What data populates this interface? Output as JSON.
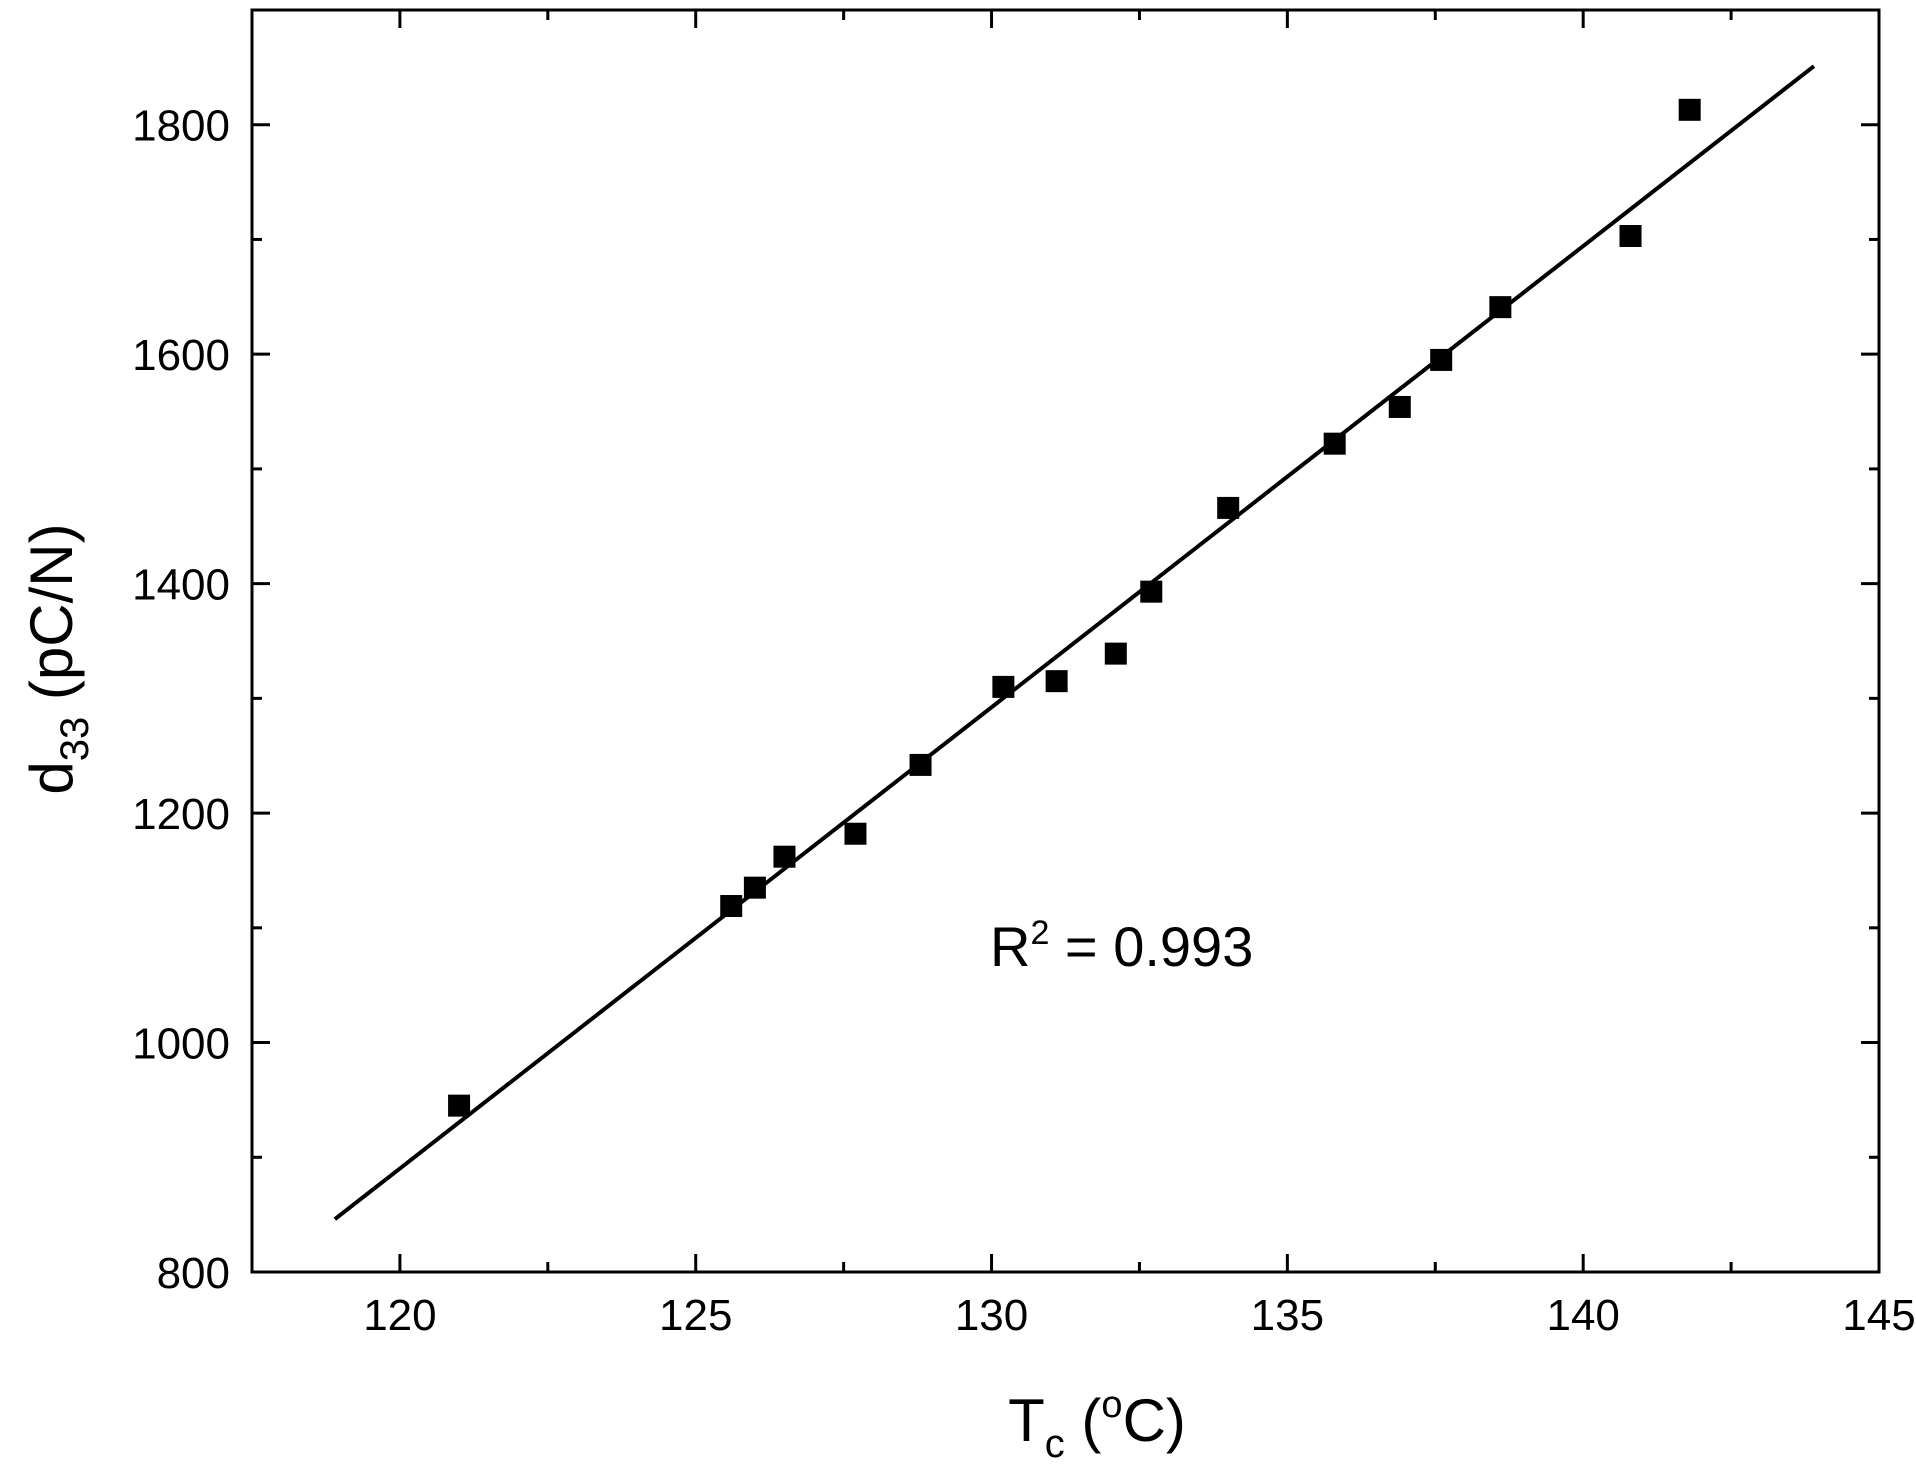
{
  "chart_data": {
    "type": "scatter",
    "xlim": [
      117.5,
      145
    ],
    "ylim": [
      800,
      1900
    ],
    "x_ticks": [
      {
        "value": 120,
        "label": "120"
      },
      {
        "value": 125,
        "label": "125"
      },
      {
        "value": 130,
        "label": "130"
      },
      {
        "value": 135,
        "label": "135"
      },
      {
        "value": 140,
        "label": "140"
      },
      {
        "value": 145,
        "label": "145"
      }
    ],
    "x_minor_ticks": [
      122.5,
      127.5,
      132.5,
      137.5,
      142.5
    ],
    "y_ticks": [
      {
        "value": 800,
        "label": "800"
      },
      {
        "value": 1000,
        "label": "1000"
      },
      {
        "value": 1200,
        "label": "1200"
      },
      {
        "value": 1400,
        "label": "1400"
      },
      {
        "value": 1600,
        "label": "1600"
      },
      {
        "value": 1800,
        "label": "1800"
      }
    ],
    "y_minor_ticks": [
      900,
      1100,
      1300,
      1500,
      1700
    ],
    "xlabel": {
      "main": "T",
      "sub": "c",
      "open": " (",
      "sup": "o",
      "unit": "C)"
    },
    "ylabel": {
      "main": "d",
      "sub": "33",
      "rest": " (pC/N)"
    },
    "grid": false,
    "marker": "square",
    "marker_color": "#000000",
    "line_color": "#000000",
    "points": [
      {
        "x": 121.0,
        "y": 945
      },
      {
        "x": 125.6,
        "y": 1119
      },
      {
        "x": 126.0,
        "y": 1135
      },
      {
        "x": 126.5,
        "y": 1162
      },
      {
        "x": 127.7,
        "y": 1182
      },
      {
        "x": 128.8,
        "y": 1242
      },
      {
        "x": 130.2,
        "y": 1310
      },
      {
        "x": 131.1,
        "y": 1315
      },
      {
        "x": 132.1,
        "y": 1339
      },
      {
        "x": 132.7,
        "y": 1393
      },
      {
        "x": 134.0,
        "y": 1466
      },
      {
        "x": 135.8,
        "y": 1522
      },
      {
        "x": 136.9,
        "y": 1554
      },
      {
        "x": 137.6,
        "y": 1595
      },
      {
        "x": 138.6,
        "y": 1641
      },
      {
        "x": 140.8,
        "y": 1703
      },
      {
        "x": 141.8,
        "y": 1813
      }
    ],
    "fit_line": {
      "x": [
        118.9,
        143.9
      ],
      "y": [
        846,
        1851
      ]
    },
    "annotation": {
      "main": "R",
      "sup": "2",
      "rest": " = 0.993"
    }
  }
}
